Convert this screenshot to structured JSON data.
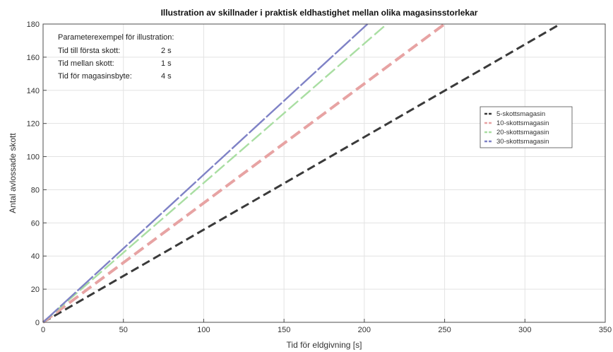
{
  "chart_data": {
    "type": "line",
    "title": "Illustration av skillnader i praktisk eldhastighet mellan olika magasinsstorlekar",
    "xlabel": "Tid för eldgivning [s]",
    "ylabel": "Antal avlossade skott",
    "xlim": [
      0,
      350
    ],
    "ylim": [
      0,
      180
    ],
    "xticks": [
      0,
      50,
      100,
      150,
      200,
      250,
      300,
      350
    ],
    "yticks": [
      0,
      20,
      40,
      60,
      80,
      100,
      120,
      140,
      160,
      180
    ],
    "grid": true,
    "legend_position": "right",
    "parameters": {
      "heading": "Parameterexempel för illustration:",
      "rows": [
        {
          "label": "Tid till första skott:",
          "value": "2 s"
        },
        {
          "label": "Tid mellan skott:",
          "value": "1 s"
        },
        {
          "label": "Tid för magasinsbyte:",
          "value": "4 s"
        }
      ]
    },
    "series": [
      {
        "name": "5-skottsmagasin",
        "magazine_size": 5,
        "color": "#3a3a3a",
        "line_style": "dashed",
        "end_x": 322,
        "end_y": 180
      },
      {
        "name": "10-skottsmagasin",
        "magazine_size": 10,
        "color": "#e7a3a3",
        "line_style": "dashed",
        "end_x": 250,
        "end_y": 180
      },
      {
        "name": "20-skottsmagasin",
        "magazine_size": 20,
        "color": "#a9dea2",
        "line_style": "dashed",
        "end_x": 214,
        "end_y": 180
      },
      {
        "name": "30-skottsmagasin",
        "magazine_size": 30,
        "color": "#7f82c6",
        "line_style": "dashed",
        "end_x": 202,
        "end_y": 180
      }
    ]
  }
}
